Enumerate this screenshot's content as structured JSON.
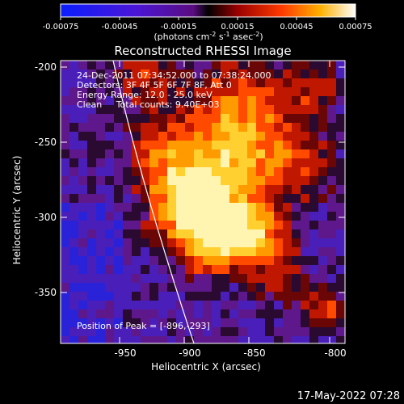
{
  "colorbar": {
    "ticks": [
      "-0.00075",
      "-0.00045",
      "-0.00015",
      "0.00015",
      "0.00045",
      "0.00075"
    ],
    "units_main": "(photons cm",
    "units_sup1": "-2",
    "units_mid": " s",
    "units_sup2": "-1",
    "units_end": " asec",
    "units_sup3": "-2",
    "units_close": ")"
  },
  "image": {
    "title": "Reconstructed RHESSI Image",
    "info_lines": [
      "24-Dec-2011 07:34:52.000 to 07:38:24.000",
      "Detectors: 3F 4F 5F 6F 7F 8F, Att 0",
      "Energy Range: 12.0 - 25.0 keV",
      "Clean     Total counts: 9.40E+03"
    ],
    "peak_label": "Position of Peak = [-896,-293]"
  },
  "axes": {
    "x_label": "Heliocentric X (arcsec)",
    "y_label": "Heliocentric Y (arcsec)",
    "x_ticks": [
      "-950",
      "-900",
      "-850",
      "-800"
    ],
    "y_ticks": [
      "-200",
      "-250",
      "-300",
      "-350"
    ]
  },
  "footer": {
    "timestamp": "17-May-2022 07:28"
  }
}
